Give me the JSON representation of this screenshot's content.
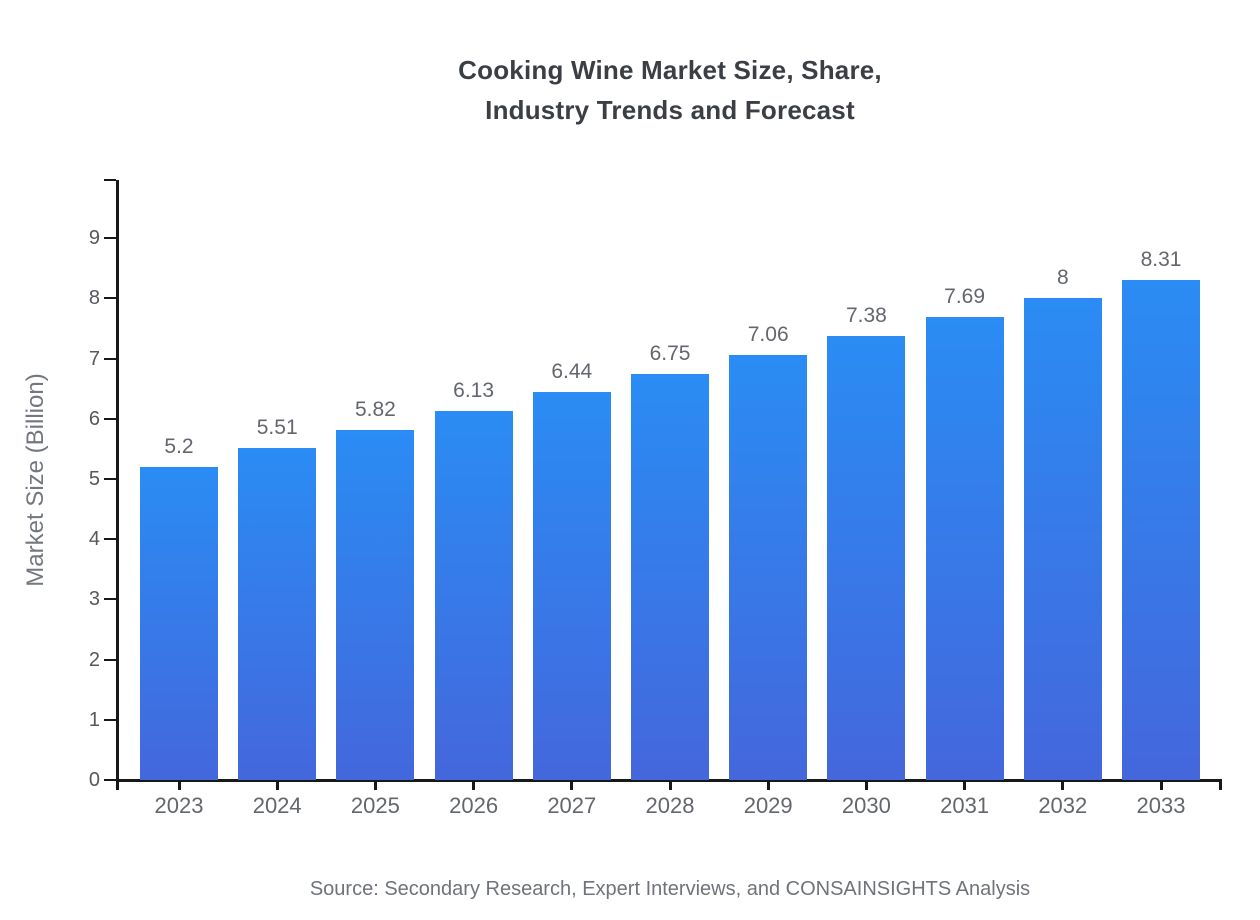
{
  "chart_data": {
    "type": "bar",
    "title": "Cooking Wine Market Size, Share, Industry Trends and Forecast",
    "title_line1": "Cooking Wine Market Size, Share,",
    "title_line2": "Industry Trends and Forecast",
    "ylabel": "Market Size (Billion)",
    "xlabel": "",
    "categories": [
      "2023",
      "2024",
      "2025",
      "2026",
      "2027",
      "2028",
      "2029",
      "2030",
      "2031",
      "2032",
      "2033"
    ],
    "values": [
      5.2,
      5.51,
      5.82,
      6.13,
      6.44,
      6.75,
      7.06,
      7.38,
      7.69,
      8,
      8.31
    ],
    "value_labels": [
      "5.2",
      "5.51",
      "5.82",
      "6.13",
      "6.44",
      "6.75",
      "7.06",
      "7.38",
      "7.69",
      "8",
      "8.31"
    ],
    "yticks": [
      0,
      1,
      2,
      3,
      4,
      5,
      6,
      7,
      8,
      9
    ],
    "ylim": [
      0,
      9.97
    ],
    "grid": false,
    "legend": null,
    "source": "Source: Secondary Research, Expert Interviews, and CONSAINSIGHTS Analysis",
    "colors": {
      "bar_gradient_top": "#2a8cf4",
      "bar_gradient_bottom": "#4467dc",
      "axis": "#17181a",
      "title_text": "#3b3f44",
      "label_text": "#63676d",
      "tick_text": "#55585d"
    }
  }
}
